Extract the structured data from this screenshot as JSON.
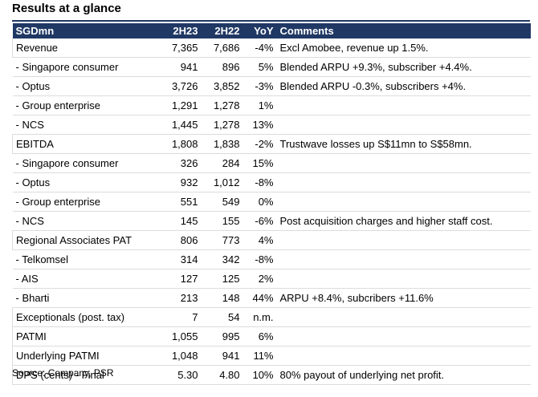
{
  "title": "Results at a glance",
  "headers": {
    "metric": "SGDmn",
    "h1": "2H23",
    "h2": "2H22",
    "yoy": "YoY",
    "comments": "Comments"
  },
  "rows": [
    {
      "metric": "Revenue",
      "h1": "7,365",
      "h2": "7,686",
      "yoy": "-4%",
      "comments": "Excl Amobee, revenue up 1.5%.",
      "level": "top"
    },
    {
      "metric": " - Singapore consumer",
      "h1": "941",
      "h2": "896",
      "yoy": "5%",
      "comments": "Blended ARPU +9.3%, subscriber +4.4%.",
      "level": "sub"
    },
    {
      "metric": " - Optus",
      "h1": "3,726",
      "h2": "3,852",
      "yoy": "-3%",
      "comments": "Blended ARPU -0.3%, subscribers +4%.",
      "level": "sub"
    },
    {
      "metric": " - Group enterprise",
      "h1": "1,291",
      "h2": "1,278",
      "yoy": "1%",
      "comments": "",
      "level": "sub"
    },
    {
      "metric": " - NCS",
      "h1": "1,445",
      "h2": "1,278",
      "yoy": "13%",
      "comments": "",
      "level": "sub"
    },
    {
      "metric": "EBITDA",
      "h1": "1,808",
      "h2": "1,838",
      "yoy": "-2%",
      "comments": "Trustwave losses up S$11mn to S$58mn.",
      "level": "top"
    },
    {
      "metric": " - Singapore consumer",
      "h1": "326",
      "h2": "284",
      "yoy": "15%",
      "comments": "",
      "level": "sub"
    },
    {
      "metric": " - Optus",
      "h1": "932",
      "h2": "1,012",
      "yoy": "-8%",
      "comments": "",
      "level": "sub"
    },
    {
      "metric": " - Group enterprise",
      "h1": "551",
      "h2": "549",
      "yoy": "0%",
      "comments": "",
      "level": "sub"
    },
    {
      "metric": " - NCS",
      "h1": "145",
      "h2": "155",
      "yoy": "-6%",
      "comments": "Post acquisition charges and higher staff cost.",
      "level": "sub"
    },
    {
      "metric": "Regional Associates PAT",
      "h1": "806",
      "h2": "773",
      "yoy": "4%",
      "comments": "",
      "level": "top"
    },
    {
      "metric": " - Telkomsel",
      "h1": "314",
      "h2": "342",
      "yoy": "-8%",
      "comments": "",
      "level": "sub"
    },
    {
      "metric": " - AIS",
      "h1": "127",
      "h2": "125",
      "yoy": "2%",
      "comments": "",
      "level": "sub"
    },
    {
      "metric": " - Bharti",
      "h1": "213",
      "h2": "148",
      "yoy": "44%",
      "comments": "ARPU +8.4%, subcribers +11.6%",
      "level": "sub"
    },
    {
      "metric": "Exceptionals (post. tax)",
      "h1": "7",
      "h2": "54",
      "yoy": "n.m.",
      "comments": "",
      "level": "top"
    },
    {
      "metric": "PATMI",
      "h1": "1,055",
      "h2": "995",
      "yoy": "6%",
      "comments": "",
      "level": "top"
    },
    {
      "metric": "Underlying PATMI",
      "h1": "1,048",
      "h2": "941",
      "yoy": "11%",
      "comments": "",
      "level": "top"
    },
    {
      "metric": "DPS (cents)  - Final",
      "h1": "5.30",
      "h2": "4.80",
      "yoy": "10%",
      "comments": "80% payout of underlying net profit.",
      "level": "top"
    }
  ],
  "source": "Source: Company, PSR",
  "colors": {
    "header_bg": "#1f3864",
    "header_text": "#ffffff"
  }
}
